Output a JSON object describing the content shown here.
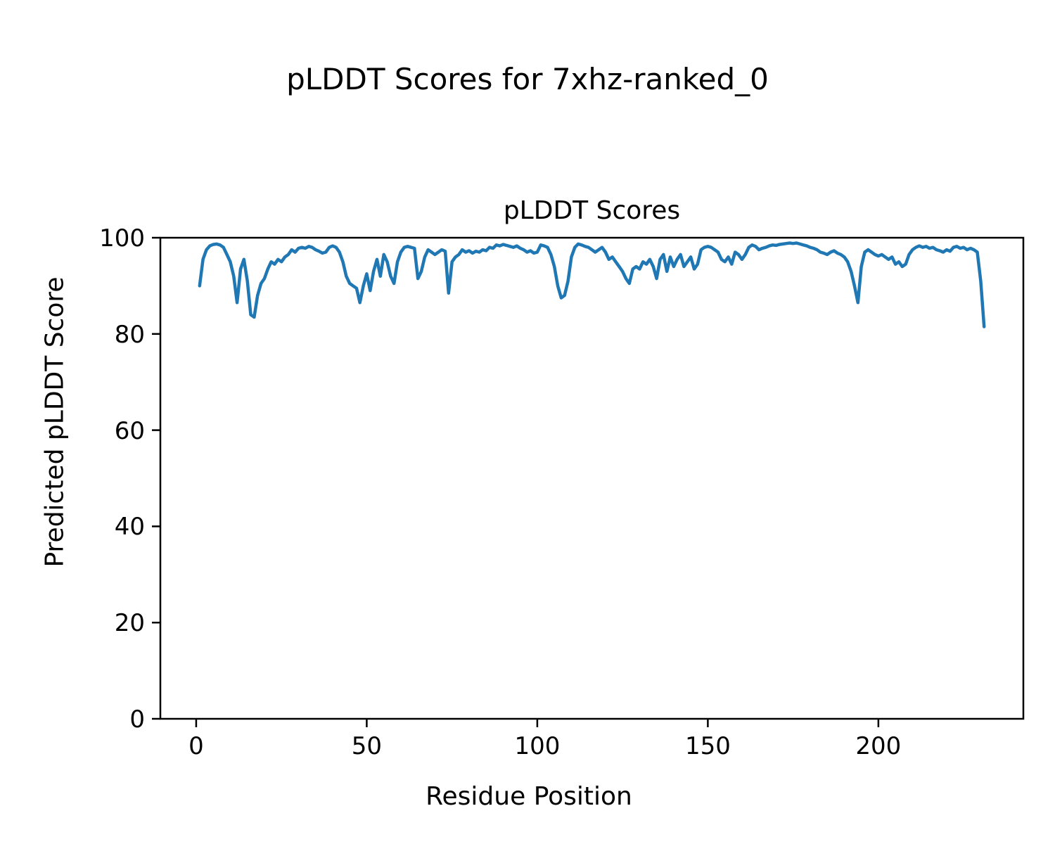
{
  "chart_data": {
    "type": "line",
    "title": "pLDDT Scores for 7xhz-ranked_0",
    "axes_title": "pLDDT Scores",
    "xlabel": "Residue Position",
    "ylabel": "Predicted pLDDT Score",
    "xlim": [
      -10.5,
      242.5
    ],
    "ylim": [
      0,
      100
    ],
    "xticks": [
      0,
      50,
      100,
      150,
      200
    ],
    "yticks": [
      0,
      20,
      40,
      60,
      80,
      100
    ],
    "grid": false,
    "legend": "none",
    "line_color": "#1f77b4",
    "series": [
      {
        "name": "pLDDT",
        "x_start": 1,
        "x_step": 1,
        "values": [
          90,
          95.5,
          97.5,
          98.3,
          98.6,
          98.7,
          98.5,
          98,
          96.5,
          95,
          92,
          86.5,
          93.5,
          95.5,
          91,
          84,
          83.5,
          88,
          90.5,
          91.5,
          93.5,
          95,
          94.5,
          95.5,
          95,
          96,
          96.5,
          97.5,
          97,
          97.8,
          98,
          97.8,
          98.2,
          98,
          97.5,
          97.2,
          96.8,
          97,
          98,
          98.3,
          98,
          97,
          95,
          92,
          90.5,
          90,
          89.5,
          86.5,
          90,
          92.5,
          89,
          93,
          95.5,
          92,
          96.5,
          95,
          92,
          90.5,
          95,
          97,
          98,
          98.2,
          98,
          97.8,
          91.5,
          93,
          96,
          97.5,
          97,
          96.5,
          97,
          97.5,
          97.2,
          88.5,
          95,
          96,
          96.5,
          97.5,
          97,
          97.3,
          96.8,
          97.2,
          97,
          97.5,
          97.3,
          98,
          97.8,
          98.5,
          98.3,
          98.6,
          98.4,
          98.2,
          98,
          98.3,
          97.8,
          97.5,
          97,
          97.3,
          96.8,
          97,
          98.5,
          98.3,
          98,
          96.5,
          94,
          90,
          87.5,
          88,
          91,
          96,
          98,
          98.7,
          98.5,
          98.2,
          98,
          97.5,
          97,
          97.5,
          98,
          97,
          95.5,
          96,
          95,
          94,
          93,
          91.5,
          90.5,
          93.5,
          94,
          93.5,
          95,
          94.5,
          95.5,
          94,
          91.5,
          95.5,
          96.5,
          93,
          96,
          94,
          95.5,
          96.5,
          94,
          95,
          96,
          93.5,
          94.5,
          97.5,
          98,
          98.2,
          98,
          97.5,
          97,
          95.5,
          95,
          96,
          94.5,
          97,
          96.5,
          95.5,
          96.5,
          98,
          98.5,
          98.2,
          97.5,
          97.8,
          98,
          98.3,
          98.5,
          98.4,
          98.6,
          98.7,
          98.8,
          98.9,
          98.8,
          98.9,
          98.7,
          98.5,
          98.3,
          98,
          97.8,
          97.5,
          97,
          96.8,
          96.5,
          97,
          97.3,
          96.8,
          96.5,
          96,
          95,
          93,
          90,
          86.5,
          94,
          97,
          97.5,
          97,
          96.5,
          96.2,
          96.5,
          96,
          95.5,
          96,
          94.5,
          95,
          94,
          94.5,
          96.5,
          97.5,
          98,
          98.3,
          98,
          98.2,
          97.8,
          98,
          97.5,
          97.3,
          97,
          97.5,
          97.2,
          98,
          98.2,
          97.8,
          98,
          97.5,
          97.8,
          97.5,
          97,
          91,
          81.5
        ]
      }
    ]
  }
}
